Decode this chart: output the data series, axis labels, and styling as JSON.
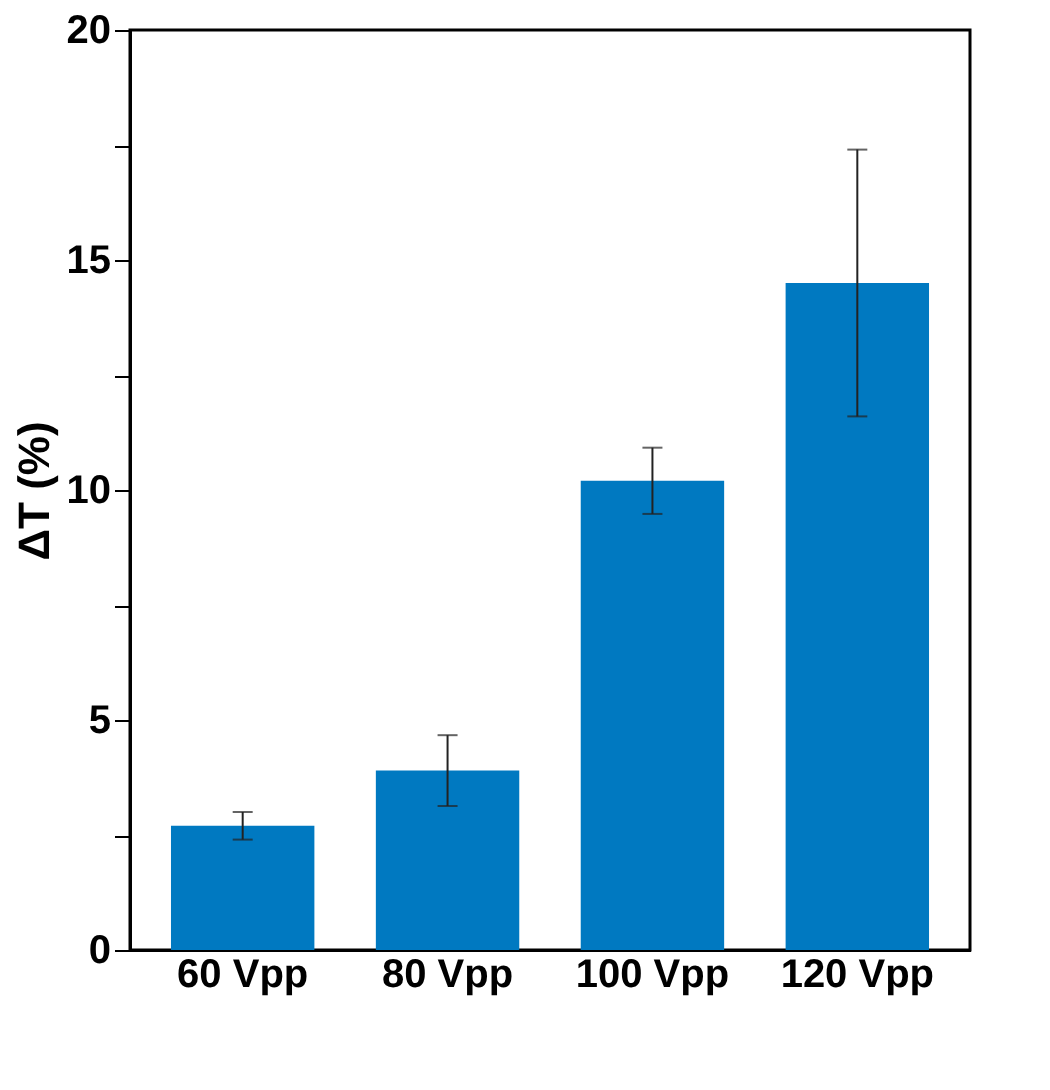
{
  "chart_data": {
    "type": "bar",
    "ylabel": "ΔT (%)",
    "categories": [
      "60 Vpp",
      "80 Vpp",
      "100 Vpp",
      "120 Vpp"
    ],
    "values": [
      2.7,
      3.9,
      10.2,
      14.5
    ],
    "errors": [
      0.3,
      0.77,
      0.72,
      2.9
    ],
    "color": "#0079c1",
    "ylim": [
      0,
      20
    ],
    "yticks": [
      0,
      {
        "value": 2.5,
        "label": null
      },
      5,
      {
        "value": 7.5,
        "label": null
      },
      10,
      {
        "value": 12.5,
        "label": null
      },
      15,
      {
        "value": 17.5,
        "label": null
      },
      20
    ],
    "grid": false
  }
}
